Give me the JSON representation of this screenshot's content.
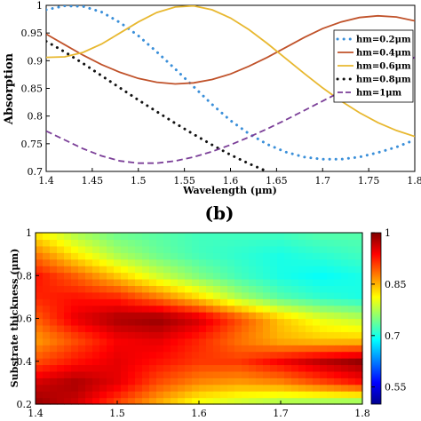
{
  "chart_data": [
    {
      "type": "line",
      "xlabel": "Wavelength (μm)",
      "ylabel": "Absorption",
      "xlim": [
        1.4,
        1.8
      ],
      "ylim": [
        0.7,
        1.0
      ],
      "xticks": [
        "1.4",
        "1.45",
        "1.5",
        "1.55",
        "1.6",
        "1.65",
        "1.7",
        "1.75",
        "1.8"
      ],
      "yticks": [
        "0.7",
        "0.75",
        "0.8",
        "0.85",
        "0.9",
        "0.95",
        "1"
      ],
      "grid": false,
      "legend_position": "top-right",
      "series": [
        {
          "name": "hm=0.2μm",
          "style": "dotted",
          "color": "#3a8fd9",
          "x": [
            1.4,
            1.42,
            1.44,
            1.46,
            1.48,
            1.5,
            1.52,
            1.54,
            1.56,
            1.58,
            1.6,
            1.62,
            1.64,
            1.66,
            1.68,
            1.7,
            1.72,
            1.74,
            1.76,
            1.78,
            1.8
          ],
          "y": [
            0.992,
            0.999,
            0.998,
            0.988,
            0.969,
            0.945,
            0.916,
            0.885,
            0.853,
            0.821,
            0.792,
            0.768,
            0.749,
            0.735,
            0.726,
            0.722,
            0.722,
            0.726,
            0.734,
            0.744,
            0.757
          ]
        },
        {
          "name": "hm=0.4μm",
          "style": "solid",
          "color": "#c0522a",
          "x": [
            1.4,
            1.42,
            1.44,
            1.46,
            1.48,
            1.5,
            1.52,
            1.54,
            1.56,
            1.58,
            1.6,
            1.62,
            1.64,
            1.66,
            1.68,
            1.7,
            1.72,
            1.74,
            1.76,
            1.78,
            1.8
          ],
          "y": [
            0.948,
            0.929,
            0.91,
            0.893,
            0.879,
            0.868,
            0.861,
            0.858,
            0.86,
            0.866,
            0.876,
            0.89,
            0.906,
            0.924,
            0.942,
            0.958,
            0.97,
            0.978,
            0.981,
            0.979,
            0.972
          ]
        },
        {
          "name": "hm=0.6μm",
          "style": "solid",
          "color": "#e8b830",
          "x": [
            1.4,
            1.42,
            1.44,
            1.46,
            1.48,
            1.5,
            1.52,
            1.54,
            1.56,
            1.58,
            1.6,
            1.62,
            1.64,
            1.66,
            1.68,
            1.7,
            1.72,
            1.74,
            1.76,
            1.78,
            1.8
          ],
          "y": [
            0.906,
            0.907,
            0.915,
            0.93,
            0.95,
            0.97,
            0.987,
            0.997,
            0.999,
            0.992,
            0.977,
            0.956,
            0.931,
            0.904,
            0.877,
            0.851,
            0.827,
            0.806,
            0.788,
            0.774,
            0.763
          ]
        },
        {
          "name": "hm=0.8μm",
          "style": "dotted",
          "color": "#111111",
          "x": [
            1.4,
            1.42,
            1.44,
            1.46,
            1.48,
            1.5,
            1.52,
            1.54,
            1.56,
            1.58,
            1.6,
            1.62,
            1.64
          ],
          "y": [
            0.935,
            0.916,
            0.895,
            0.873,
            0.851,
            0.829,
            0.808,
            0.787,
            0.767,
            0.748,
            0.73,
            0.714,
            0.7
          ]
        },
        {
          "name": "hm=1μm",
          "style": "dashed",
          "color": "#7b3f98",
          "x": [
            1.4,
            1.42,
            1.44,
            1.46,
            1.48,
            1.5,
            1.52,
            1.54,
            1.56,
            1.58,
            1.6,
            1.62,
            1.64,
            1.66,
            1.68,
            1.7,
            1.72,
            1.74,
            1.76,
            1.78,
            1.8
          ],
          "y": [
            0.773,
            0.757,
            0.741,
            0.728,
            0.719,
            0.715,
            0.715,
            0.719,
            0.726,
            0.736,
            0.748,
            0.762,
            0.777,
            0.793,
            0.81,
            0.827,
            0.844,
            0.861,
            0.877,
            0.892,
            0.906
          ]
        }
      ]
    },
    {
      "type": "heatmap",
      "panel_label": "(b)",
      "ylabel": "Substrate thickness (μm)",
      "xlim": [
        1.4,
        1.8
      ],
      "ylim": [
        0.2,
        1.0
      ],
      "xticks": [
        "1.4",
        "1.5",
        "1.6",
        "1.7",
        "1.8"
      ],
      "yticks": [
        "0.2",
        "0.4",
        "0.6",
        "0.8",
        "1"
      ],
      "colorbar": {
        "range": [
          0.5,
          1.0
        ],
        "ticks": [
          "1",
          "0.85",
          "0.7",
          "0.55"
        ],
        "colormap": "jet"
      },
      "x": [
        1.4,
        1.45,
        1.5,
        1.55,
        1.6,
        1.65,
        1.7,
        1.75,
        1.8
      ],
      "y": [
        0.2,
        0.3,
        0.4,
        0.5,
        0.6,
        0.7,
        0.8,
        0.9,
        1.0
      ],
      "z": [
        [
          0.99,
          0.96,
          0.9,
          0.85,
          0.8,
          0.78,
          0.76,
          0.75,
          0.74
        ],
        [
          0.96,
          0.98,
          0.95,
          0.9,
          0.87,
          0.86,
          0.87,
          0.9,
          0.93
        ],
        [
          0.9,
          0.93,
          0.95,
          0.93,
          0.91,
          0.91,
          0.94,
          0.97,
          0.99
        ],
        [
          0.86,
          0.9,
          0.94,
          0.95,
          0.92,
          0.88,
          0.85,
          0.84,
          0.84
        ],
        [
          0.89,
          0.95,
          0.98,
          0.99,
          0.96,
          0.9,
          0.84,
          0.8,
          0.78
        ],
        [
          0.92,
          0.93,
          0.92,
          0.88,
          0.83,
          0.77,
          0.73,
          0.71,
          0.7
        ],
        [
          0.93,
          0.89,
          0.84,
          0.79,
          0.75,
          0.72,
          0.7,
          0.69,
          0.7
        ],
        [
          0.88,
          0.82,
          0.77,
          0.74,
          0.72,
          0.71,
          0.7,
          0.71,
          0.72
        ],
        [
          0.82,
          0.77,
          0.74,
          0.73,
          0.72,
          0.72,
          0.72,
          0.73,
          0.73
        ]
      ]
    }
  ]
}
